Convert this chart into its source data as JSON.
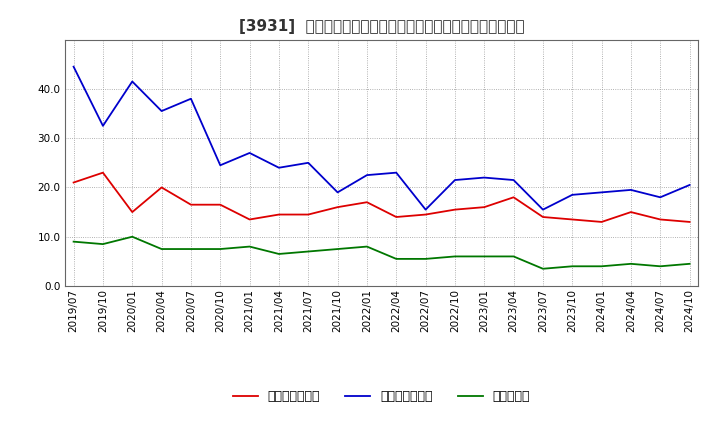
{
  "title": "[3931]  売上債権回転率、買入債務回転率、在庫回転率の推移",
  "x_labels": [
    "2019/07",
    "2019/10",
    "2020/01",
    "2020/04",
    "2020/07",
    "2020/10",
    "2021/01",
    "2021/04",
    "2021/07",
    "2021/10",
    "2022/01",
    "2022/04",
    "2022/07",
    "2022/10",
    "2023/01",
    "2023/04",
    "2023/07",
    "2023/10",
    "2024/01",
    "2024/04",
    "2024/07",
    "2024/10"
  ],
  "accounts_receivable_turnover": [
    21.0,
    23.0,
    15.0,
    20.0,
    16.5,
    16.5,
    13.5,
    14.5,
    14.5,
    16.0,
    17.0,
    14.0,
    14.5,
    15.5,
    16.0,
    18.0,
    14.0,
    13.5,
    13.0,
    15.0,
    13.5,
    13.0
  ],
  "accounts_payable_turnover": [
    44.5,
    32.5,
    41.5,
    35.5,
    38.0,
    24.5,
    27.0,
    24.0,
    25.0,
    19.0,
    22.5,
    23.0,
    15.5,
    21.5,
    22.0,
    21.5,
    15.5,
    18.5,
    19.0,
    19.5,
    18.0,
    20.5
  ],
  "inventory_turnover": [
    9.0,
    8.5,
    10.0,
    7.5,
    7.5,
    7.5,
    8.0,
    6.5,
    7.0,
    7.5,
    8.0,
    5.5,
    5.5,
    6.0,
    6.0,
    6.0,
    3.5,
    4.0,
    4.0,
    4.5,
    4.0,
    4.5
  ],
  "color_ar": "#dd0000",
  "color_ap": "#0000cc",
  "color_inv": "#007700",
  "legend_ar": "売上債権回転率",
  "legend_ap": "買入債務回転率",
  "legend_inv": "在庫回転率",
  "ylim": [
    0.0,
    50.0
  ],
  "yticks": [
    0.0,
    10.0,
    20.0,
    30.0,
    40.0
  ],
  "background_color": "#ffffff",
  "grid_color": "#999999",
  "title_fontsize": 11,
  "legend_fontsize": 9,
  "tick_fontsize": 7.5,
  "title_color": "#333333"
}
